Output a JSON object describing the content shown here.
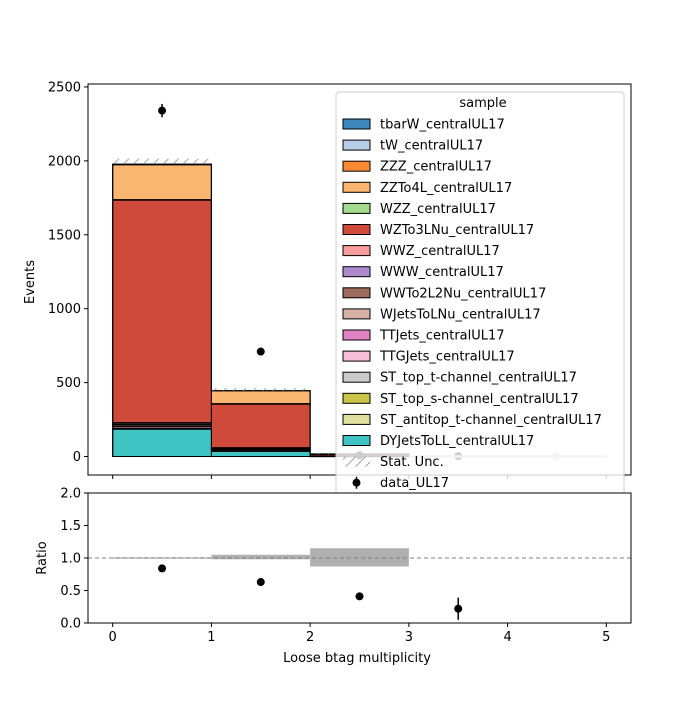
{
  "chart_data": [
    {
      "type": "bar",
      "stacked": true,
      "title": "",
      "xlabel": "",
      "ylabel": "Events",
      "xlim": [
        -0.25,
        5.25
      ],
      "ylim": [
        -125,
        2520
      ],
      "yticks": [
        0,
        500,
        1000,
        1500,
        2000,
        2500
      ],
      "x_bins": [
        [
          0,
          1
        ],
        [
          1,
          2
        ],
        [
          2,
          3
        ],
        [
          3,
          4
        ],
        [
          4,
          5
        ]
      ],
      "legend": {
        "title": "sample",
        "placement": "top-right",
        "entries": [
          {
            "label": "tbarW_centralUL17",
            "kind": "patch",
            "series": "tbarW_centralUL17"
          },
          {
            "label": "tW_centralUL17",
            "kind": "patch",
            "series": "tW_centralUL17"
          },
          {
            "label": "ZZZ_centralUL17",
            "kind": "patch",
            "series": "ZZZ_centralUL17"
          },
          {
            "label": "ZZTo4L_centralUL17",
            "kind": "patch",
            "series": "ZZTo4L_centralUL17"
          },
          {
            "label": "WZZ_centralUL17",
            "kind": "patch",
            "series": "WZZ_centralUL17"
          },
          {
            "label": "WZTo3LNu_centralUL17",
            "kind": "patch",
            "series": "WZTo3LNu_centralUL17"
          },
          {
            "label": "WWZ_centralUL17",
            "kind": "patch",
            "series": "WWZ_centralUL17"
          },
          {
            "label": "WWW_centralUL17",
            "kind": "patch",
            "series": "WWW_centralUL17"
          },
          {
            "label": "WWTo2L2Nu_centralUL17",
            "kind": "patch",
            "series": "WWTo2L2Nu_centralUL17"
          },
          {
            "label": "WJetsToLNu_centralUL17",
            "kind": "patch",
            "series": "WJetsToLNu_centralUL17"
          },
          {
            "label": "TTJets_centralUL17",
            "kind": "patch",
            "series": "TTJets_centralUL17"
          },
          {
            "label": "TTGJets_centralUL17",
            "kind": "patch",
            "series": "TTGJets_centralUL17"
          },
          {
            "label": "ST_top_t-channel_centralUL17",
            "kind": "patch",
            "series": "ST_top_t-channel_centralUL17"
          },
          {
            "label": "ST_top_s-channel_centralUL17",
            "kind": "patch",
            "series": "ST_top_s-channel_centralUL17"
          },
          {
            "label": "ST_antitop_t-channel_centralUL17",
            "kind": "patch",
            "series": "ST_antitop_t-channel_centralUL17"
          },
          {
            "label": "DYJetsToLL_centralUL17",
            "kind": "patch",
            "series": "DYJetsToLL_centralUL17"
          },
          {
            "label": "Stat. Unc.",
            "kind": "hatch"
          },
          {
            "label": "data_UL17",
            "kind": "point"
          }
        ]
      },
      "series_colors": {
        "DYJetsToLL_centralUL17": "#3ec5c3",
        "ST_antitop_t-channel_centralUL17": "#dfe0a0",
        "ST_top_s-channel_centralUL17": "#c8c448",
        "ST_top_t-channel_centralUL17": "#cbcbcb",
        "TTGJets_centralUL17": "#f7c0d8",
        "TTJets_centralUL17": "#e082c4",
        "WJetsToLNu_centralUL17": "#d5b1a8",
        "WWTo2L2Nu_centralUL17": "#9c6b5d",
        "WWW_centralUL17": "#aa8acb",
        "WWZ_centralUL17": "#f99c9b",
        "WZTo3LNu_centralUL17": "#cf4a3a",
        "WZZ_centralUL17": "#a3da8e",
        "ZZTo4L_centralUL17": "#fbb771",
        "ZZZ_centralUL17": "#fd8a32",
        "tW_centralUL17": "#b7cde6",
        "tbarW_centralUL17": "#3c87bd"
      },
      "series": [
        {
          "name": "DYJetsToLL_centralUL17",
          "values": [
            185,
            35,
            0,
            0,
            0
          ]
        },
        {
          "name": "ST_antitop_t-channel_centralUL17",
          "values": [
            0,
            0,
            0,
            0,
            0
          ]
        },
        {
          "name": "ST_top_s-channel_centralUL17",
          "values": [
            0,
            0,
            0,
            0,
            0
          ]
        },
        {
          "name": "ST_top_t-channel_centralUL17",
          "values": [
            0,
            0,
            0,
            0,
            0
          ]
        },
        {
          "name": "TTGJets_centralUL17",
          "values": [
            5,
            3,
            0,
            0,
            0
          ]
        },
        {
          "name": "TTJets_centralUL17",
          "values": [
            12,
            8,
            3,
            0,
            0
          ]
        },
        {
          "name": "WJetsToLNu_centralUL17",
          "values": [
            5,
            3,
            0,
            0,
            0
          ]
        },
        {
          "name": "WWTo2L2Nu_centralUL17",
          "values": [
            10,
            5,
            0,
            0,
            0
          ]
        },
        {
          "name": "WWW_centralUL17",
          "values": [
            5,
            2,
            0,
            0,
            0
          ]
        },
        {
          "name": "WWZ_centralUL17",
          "values": [
            8,
            4,
            1,
            0,
            0
          ]
        },
        {
          "name": "WZTo3LNu_centralUL17",
          "values": [
            1505,
            297,
            10,
            0,
            0
          ]
        },
        {
          "name": "WZZ_centralUL17",
          "values": [
            3,
            1,
            0,
            0,
            0
          ]
        },
        {
          "name": "ZZTo4L_centralUL17",
          "values": [
            237,
            87,
            3,
            0,
            0
          ]
        },
        {
          "name": "ZZZ_centralUL17",
          "values": [
            2,
            0,
            0,
            0,
            0
          ]
        },
        {
          "name": "tW_centralUL17",
          "values": [
            0,
            0,
            0,
            0,
            0
          ]
        },
        {
          "name": "tbarW_centralUL17",
          "values": [
            0,
            0,
            0,
            0,
            0
          ]
        }
      ],
      "stat_unc": {
        "label": "Stat. Unc.",
        "bands": [
          {
            "bin": 0,
            "low": 1985,
            "high": 2015
          },
          {
            "bin": 1,
            "low": 443,
            "high": 463
          },
          {
            "bin": 2,
            "low": 13,
            "high": 24
          }
        ]
      },
      "data": {
        "name": "data_UL17",
        "x": [
          0.5,
          1.5,
          2.5,
          3.5,
          4.5
        ],
        "y": [
          2340,
          710,
          8,
          3,
          0
        ],
        "yerr": [
          45,
          27,
          3,
          2,
          0
        ]
      }
    },
    {
      "type": "scatter",
      "title": "",
      "xlabel": "Loose btag multiplicity",
      "ylabel": "Ratio",
      "xlim": [
        -0.25,
        5.25
      ],
      "ylim": [
        0,
        2
      ],
      "xticks": [
        0,
        1,
        2,
        3,
        4,
        5
      ],
      "yticks": [
        "0.0",
        "0.5",
        "1.0",
        "1.5",
        "2.0"
      ],
      "reference_line": 1.0,
      "unc_bands": [
        {
          "bin": 0,
          "low": 0.99,
          "high": 1.01
        },
        {
          "bin": 1,
          "low": 0.98,
          "high": 1.05
        },
        {
          "bin": 2,
          "low": 0.87,
          "high": 1.15
        }
      ],
      "points": {
        "x": [
          0.5,
          1.5,
          2.5,
          3.5
        ],
        "y": [
          0.84,
          0.63,
          0.41,
          0.22
        ],
        "yerr": [
          0.02,
          0.03,
          0.04,
          0.17
        ]
      }
    }
  ]
}
